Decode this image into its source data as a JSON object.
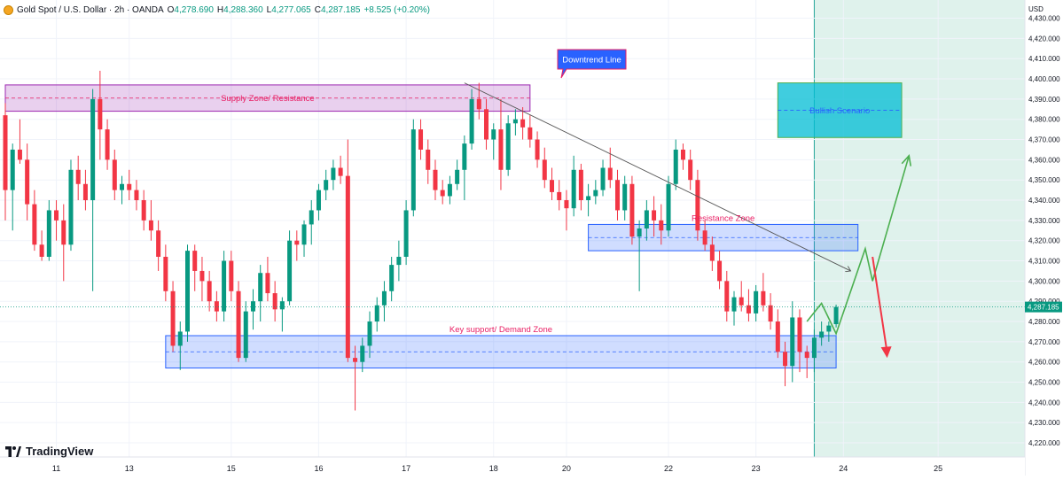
{
  "header": {
    "symbol": "Gold Spot / U.S. Dollar · 2h · OANDA",
    "open_label": "O",
    "open": "4,278.690",
    "high_label": "H",
    "high": "4,288.360",
    "low_label": "L",
    "low": "4,277.065",
    "close_label": "C",
    "close": "4,287.185",
    "change": "+8.525 (+0.20%)"
  },
  "brand": {
    "name": "TradingView"
  },
  "colors": {
    "up": "#089981",
    "down": "#f23645",
    "grid": "#f0f3fa",
    "zone_blue": "#2962ff",
    "zone_purple": "#9c27b0",
    "scenario": "#00bcd4",
    "projection": "#4caf50"
  },
  "chart_data": {
    "type": "candlestick",
    "currency": "USD",
    "ylim": [
      4213,
      4439
    ],
    "y_ticks": [
      4220,
      4230,
      4240,
      4250,
      4260,
      4270,
      4280,
      4290,
      4300,
      4310,
      4320,
      4330,
      4340,
      4350,
      4360,
      4370,
      4380,
      4390,
      4400,
      4410,
      4420,
      4430
    ],
    "y_tick_labels": [
      "4,220.000",
      "4,230.000",
      "4,240.000",
      "4,250.000",
      "4,260.000",
      "4,270.000",
      "4,280.000",
      "4,290.000",
      "4,300.000",
      "4,310.000",
      "4,320.000",
      "4,330.000",
      "4,340.000",
      "4,350.000",
      "4,360.000",
      "4,370.000",
      "4,380.000",
      "4,390.000",
      "4,400.000",
      "4,410.000",
      "4,420.000",
      "4,430.000"
    ],
    "x_ticks": [
      {
        "label": "11",
        "bar": 7
      },
      {
        "label": "13",
        "bar": 17
      },
      {
        "label": "15",
        "bar": 31
      },
      {
        "label": "16",
        "bar": 43
      },
      {
        "label": "17",
        "bar": 55
      },
      {
        "label": "18",
        "bar": 67
      },
      {
        "label": "20",
        "bar": 77
      },
      {
        "label": "22",
        "bar": 91
      },
      {
        "label": "23",
        "bar": 103
      },
      {
        "label": "24",
        "bar": 115
      },
      {
        "label": "25",
        "bar": 128
      }
    ],
    "last_price": 4287.185,
    "last_price_label": "4,287.185",
    "candles": [
      [
        4382,
        4388,
        4330,
        4345
      ],
      [
        4345,
        4368,
        4325,
        4365
      ],
      [
        4365,
        4380,
        4358,
        4360
      ],
      [
        4360,
        4368,
        4330,
        4338
      ],
      [
        4338,
        4345,
        4315,
        4318
      ],
      [
        4318,
        4325,
        4310,
        4312
      ],
      [
        4312,
        4340,
        4310,
        4335
      ],
      [
        4335,
        4340,
        4320,
        4330
      ],
      [
        4330,
        4338,
        4300,
        4318
      ],
      [
        4318,
        4360,
        4315,
        4355
      ],
      [
        4355,
        4362,
        4340,
        4348
      ],
      [
        4348,
        4355,
        4335,
        4340
      ],
      [
        4340,
        4395,
        4295,
        4390
      ],
      [
        4390,
        4404,
        4360,
        4375
      ],
      [
        4375,
        4380,
        4355,
        4360
      ],
      [
        4360,
        4365,
        4340,
        4345
      ],
      [
        4345,
        4352,
        4338,
        4348
      ],
      [
        4348,
        4355,
        4340,
        4345
      ],
      [
        4345,
        4350,
        4335,
        4340
      ],
      [
        4340,
        4345,
        4325,
        4330
      ],
      [
        4330,
        4340,
        4320,
        4325
      ],
      [
        4325,
        4330,
        4305,
        4312
      ],
      [
        4312,
        4318,
        4290,
        4295
      ],
      [
        4295,
        4300,
        4265,
        4268
      ],
      [
        4268,
        4280,
        4256,
        4275
      ],
      [
        4275,
        4318,
        4270,
        4315
      ],
      [
        4315,
        4318,
        4295,
        4305
      ],
      [
        4305,
        4312,
        4290,
        4300
      ],
      [
        4300,
        4305,
        4285,
        4290
      ],
      [
        4290,
        4295,
        4280,
        4285
      ],
      [
        4285,
        4315,
        4280,
        4310
      ],
      [
        4310,
        4315,
        4290,
        4295
      ],
      [
        4295,
        4300,
        4260,
        4262
      ],
      [
        4262,
        4290,
        4260,
        4285
      ],
      [
        4285,
        4296,
        4276,
        4290
      ],
      [
        4290,
        4308,
        4280,
        4304
      ],
      [
        4304,
        4312,
        4290,
        4294
      ],
      [
        4294,
        4300,
        4280,
        4286
      ],
      [
        4286,
        4292,
        4275,
        4290
      ],
      [
        4290,
        4325,
        4288,
        4320
      ],
      [
        4320,
        4325,
        4310,
        4318
      ],
      [
        4318,
        4330,
        4312,
        4328
      ],
      [
        4328,
        4340,
        4318,
        4335
      ],
      [
        4335,
        4348,
        4330,
        4345
      ],
      [
        4345,
        4355,
        4340,
        4350
      ],
      [
        4350,
        4360,
        4345,
        4356
      ],
      [
        4356,
        4362,
        4348,
        4352
      ],
      [
        4352,
        4370,
        4260,
        4262
      ],
      [
        4262,
        4268,
        4236,
        4260
      ],
      [
        4260,
        4272,
        4255,
        4268
      ],
      [
        4268,
        4285,
        4262,
        4280
      ],
      [
        4280,
        4292,
        4275,
        4288
      ],
      [
        4288,
        4300,
        4280,
        4295
      ],
      [
        4295,
        4312,
        4290,
        4308
      ],
      [
        4308,
        4320,
        4300,
        4312
      ],
      [
        4312,
        4340,
        4308,
        4335
      ],
      [
        4335,
        4380,
        4332,
        4375
      ],
      [
        4375,
        4380,
        4360,
        4365
      ],
      [
        4365,
        4370,
        4348,
        4355
      ],
      [
        4355,
        4360,
        4340,
        4345
      ],
      [
        4345,
        4350,
        4338,
        4342
      ],
      [
        4342,
        4352,
        4338,
        4348
      ],
      [
        4348,
        4360,
        4345,
        4355
      ],
      [
        4355,
        4372,
        4340,
        4368
      ],
      [
        4368,
        4395,
        4365,
        4390
      ],
      [
        4390,
        4398,
        4380,
        4385
      ],
      [
        4385,
        4390,
        4365,
        4370
      ],
      [
        4370,
        4378,
        4360,
        4375
      ],
      [
        4375,
        4390,
        4345,
        4355
      ],
      [
        4355,
        4382,
        4352,
        4378
      ],
      [
        4378,
        4385,
        4372,
        4380
      ],
      [
        4380,
        4386,
        4370,
        4376
      ],
      [
        4376,
        4382,
        4366,
        4370
      ],
      [
        4370,
        4374,
        4356,
        4360
      ],
      [
        4360,
        4366,
        4346,
        4350
      ],
      [
        4350,
        4356,
        4340,
        4344
      ],
      [
        4344,
        4350,
        4335,
        4340
      ],
      [
        4340,
        4345,
        4325,
        4336
      ],
      [
        4336,
        4362,
        4332,
        4355
      ],
      [
        4355,
        4358,
        4335,
        4340
      ],
      [
        4340,
        4348,
        4332,
        4342
      ],
      [
        4342,
        4350,
        4338,
        4345
      ],
      [
        4345,
        4360,
        4342,
        4356
      ],
      [
        4356,
        4366,
        4346,
        4350
      ],
      [
        4350,
        4355,
        4330,
        4335
      ],
      [
        4335,
        4352,
        4330,
        4348
      ],
      [
        4348,
        4352,
        4318,
        4322
      ],
      [
        4322,
        4330,
        4295,
        4326
      ],
      [
        4326,
        4340,
        4320,
        4335
      ],
      [
        4335,
        4342,
        4322,
        4330
      ],
      [
        4330,
        4338,
        4318,
        4325
      ],
      [
        4325,
        4352,
        4322,
        4348
      ],
      [
        4348,
        4370,
        4345,
        4365
      ],
      [
        4365,
        4368,
        4355,
        4360
      ],
      [
        4360,
        4365,
        4345,
        4350
      ],
      [
        4350,
        4355,
        4320,
        4325
      ],
      [
        4325,
        4330,
        4315,
        4318
      ],
      [
        4318,
        4322,
        4305,
        4310
      ],
      [
        4310,
        4315,
        4296,
        4300
      ],
      [
        4300,
        4305,
        4280,
        4285
      ],
      [
        4285,
        4295,
        4278,
        4292
      ],
      [
        4292,
        4300,
        4285,
        4288
      ],
      [
        4288,
        4296,
        4280,
        4284
      ],
      [
        4284,
        4298,
        4280,
        4295
      ],
      [
        4295,
        4304,
        4285,
        4288
      ],
      [
        4288,
        4294,
        4276,
        4280
      ],
      [
        4280,
        4286,
        4262,
        4265
      ],
      [
        4265,
        4270,
        4248,
        4258
      ],
      [
        4258,
        4290,
        4250,
        4282
      ],
      [
        4282,
        4286,
        4255,
        4265
      ],
      [
        4265,
        4268,
        4252,
        4262
      ],
      [
        4262,
        4276,
        4255,
        4272
      ],
      [
        4272,
        4280,
        4268,
        4275
      ],
      [
        4275,
        4280,
        4270,
        4278
      ],
      [
        4278.69,
        4288.36,
        4277.065,
        4287.185
      ]
    ],
    "zones": [
      {
        "name": "supply-zone",
        "label": "Supply Zone/ Resistance",
        "from_bar": 0,
        "to_bar": 72,
        "y_low": 4384,
        "y_high": 4397
      },
      {
        "name": "resistance-zone",
        "label": "Resistance Zone",
        "from_bar": 80,
        "to_bar": 117,
        "y_low": 4315,
        "y_high": 4328
      },
      {
        "name": "demand-zone",
        "label": "Key support/ Demand Zone",
        "from_bar": 22,
        "to_bar": 114,
        "y_low": 4257,
        "y_high": 4273
      },
      {
        "name": "bullish-scenario",
        "label": "Bullish Scenario",
        "from_bar": 106,
        "to_bar": 123,
        "y_low": 4371,
        "y_high": 4398
      }
    ],
    "trend_line": {
      "label": "Downtrend Line",
      "points": [
        [
          63,
          4398
        ],
        [
          116,
          4305
        ]
      ]
    },
    "projections": {
      "bullish_path": [
        [
          110,
          4280
        ],
        [
          112,
          4289
        ],
        [
          114,
          4274
        ],
        [
          118,
          4316
        ],
        [
          119,
          4300
        ],
        [
          124,
          4362
        ]
      ],
      "bearish_path": [
        [
          119,
          4312
        ],
        [
          121,
          4262
        ]
      ]
    },
    "forecast_start_bar": 111
  }
}
